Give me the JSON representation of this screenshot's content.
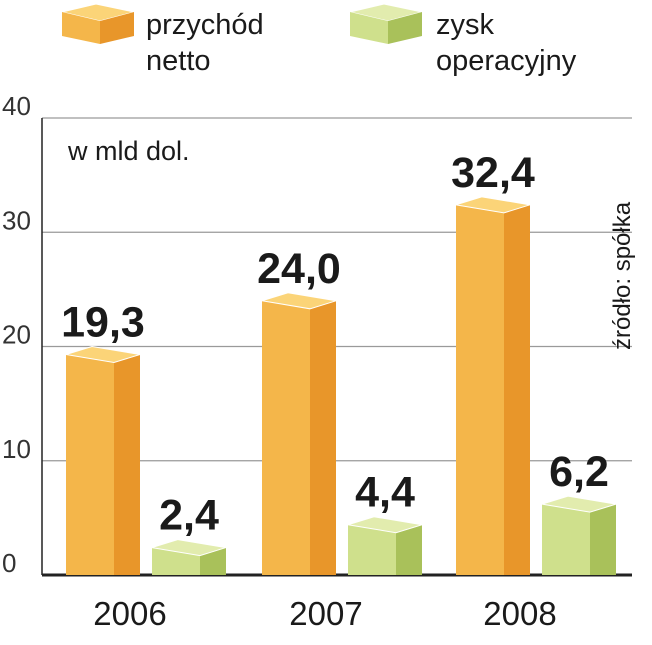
{
  "chart_data": {
    "type": "bar",
    "unit": "w mld dol.",
    "source": "źródło: spółka",
    "categories": [
      "2006",
      "2007",
      "2008"
    ],
    "series": [
      {
        "name_lines": [
          "przychód",
          "netto"
        ],
        "values": [
          19.3,
          24.0,
          32.4
        ],
        "labels": [
          "19,3",
          "24,0",
          "32,4"
        ]
      },
      {
        "name_lines": [
          "zysk",
          "operacyjny"
        ],
        "values": [
          2.4,
          4.4,
          6.2
        ],
        "labels": [
          "2,4",
          "4,4",
          "6,2"
        ]
      }
    ],
    "ylim": [
      0,
      40
    ],
    "yticks": [
      0,
      10,
      20,
      30,
      40
    ],
    "grid": true,
    "legend_position": "top"
  },
  "colors": {
    "series_0": {
      "front": "#f4b64a",
      "side": "#e8962a",
      "top": "#fbd478"
    },
    "series_1": {
      "front": "#cfe08c",
      "side": "#a9c15a",
      "top": "#e2ecae"
    },
    "grid": "#9a9a9a",
    "axis": "#222222"
  }
}
